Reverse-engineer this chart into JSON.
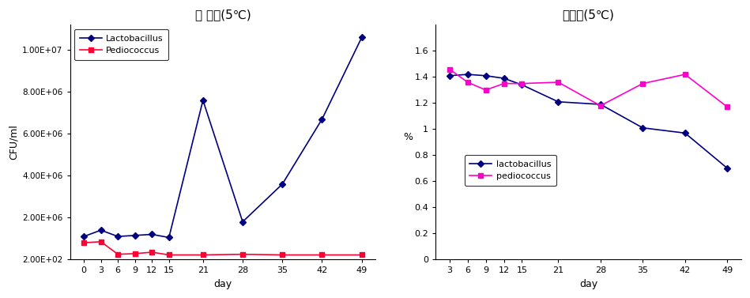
{
  "left_title": "송 균수(5℃)",
  "right_title": "환원당(5℃)",
  "left_xlabel": "day",
  "left_ylabel": "CFU/ml",
  "right_xlabel": "day",
  "right_ylabel": "%",
  "left_days": [
    0,
    3,
    6,
    9,
    12,
    15,
    21,
    28,
    35,
    42,
    49
  ],
  "lacto_cfu": [
    1100000,
    1400000,
    1100000,
    1150000,
    1200000,
    1050000,
    7600000,
    1800000,
    3600000,
    6700000,
    10600000
  ],
  "pedio_cfu": [
    800000,
    850000,
    250000,
    280000,
    350000,
    220000,
    220000,
    250000,
    220000,
    220000,
    220000
  ],
  "right_days": [
    3,
    6,
    9,
    12,
    15,
    21,
    28,
    35,
    42,
    49
  ],
  "lacto_sugar": [
    1.41,
    1.42,
    1.41,
    1.39,
    1.34,
    1.21,
    1.19,
    1.01,
    0.97,
    0.7
  ],
  "pedio_sugar": [
    1.46,
    1.36,
    1.3,
    1.35,
    1.35,
    1.36,
    1.18,
    1.35,
    1.42,
    1.17
  ],
  "lacto_color": "#000080",
  "pedio_color_left": "#FF0033",
  "pedio_color_right": "#FF00CC",
  "left_yticks": [
    200,
    2000000,
    4000000,
    6000000,
    8000000,
    10000000
  ],
  "left_yticklabels": [
    "2.00E+02",
    "2.00E+06",
    "4.00E+06",
    "6.00E+06",
    "8.00E+06",
    "1.00E+07"
  ],
  "left_xticks": [
    0,
    3,
    6,
    9,
    12,
    15,
    21,
    28,
    35,
    42,
    49
  ],
  "right_ylim": [
    0,
    1.8
  ],
  "right_yticks": [
    0,
    0.2,
    0.4,
    0.6,
    0.8,
    1.0,
    1.2,
    1.4,
    1.6
  ],
  "right_yticklabels": [
    "0",
    "0.2",
    "0.4",
    "0.6",
    "0.8",
    "1",
    "1.2",
    "1.4",
    "1.6"
  ],
  "right_xticks": [
    3,
    6,
    9,
    12,
    15,
    21,
    28,
    35,
    42,
    49
  ]
}
